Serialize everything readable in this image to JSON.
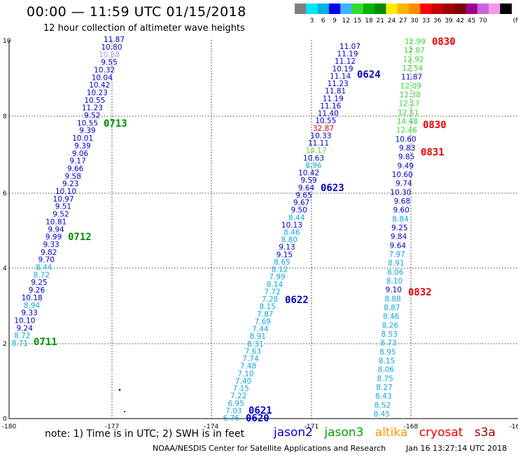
{
  "header": {
    "title": "00:00 — 11:59 UTC 01/15/2018",
    "subtitle": "12 hour collection of altimeter wave heights"
  },
  "colorbar": {
    "colors": [
      "#808080",
      "#00e5ff",
      "#00b4e0",
      "#0000e6",
      "#3cb4ff",
      "#32dc32",
      "#00b400",
      "#008c00",
      "#ffeb00",
      "#ffb400",
      "#ff8c00",
      "#ff0000",
      "#c80000",
      "#a00000",
      "#800000",
      "#a0008c",
      "#c864dc",
      "#ff96e6",
      "#000000"
    ],
    "labels": [
      "3",
      "6",
      "9",
      "12",
      "15",
      "18",
      "21",
      "24",
      "27",
      "30",
      "33",
      "36",
      "39",
      "42",
      "45",
      "70"
    ],
    "unit": "(ft)"
  },
  "map": {
    "x_ticks": [
      "-180",
      "-177",
      "-174",
      "-171",
      "-168",
      "-16"
    ],
    "y_ticks": [
      "0",
      "2",
      "4",
      "6",
      "8",
      "10"
    ],
    "grid_lines": true
  },
  "tracks": {
    "a": {
      "color": "#0000c8",
      "values": [
        "11.87",
        "10.80",
        "10.88",
        "9.55",
        "10.32",
        "10.04",
        "10.42",
        "10.23",
        "10.55",
        "11.23",
        "9.52",
        "10.55",
        "9.39",
        "10.01",
        "9.39",
        "9.06",
        "9.17",
        "9.66",
        "9.58",
        "9.23",
        "10.10",
        "10.97",
        "9.51",
        "9.52",
        "10.81",
        "9.94",
        "9.99",
        "9.33",
        "9.82",
        "9.70",
        "8.44",
        "8.72",
        "9.25",
        "9.26",
        "10.18",
        "8.94",
        "9.33",
        "10.10",
        "9.24",
        "8.72",
        "8.71"
      ],
      "light_indices": [
        2
      ],
      "cyan_indices": [
        30,
        31,
        35,
        39,
        40
      ]
    },
    "b": {
      "color": "#0000c8",
      "values": [
        "11.07",
        "11.19",
        "11.12",
        "10.19",
        "11.14",
        "11.23",
        "11.81",
        "11.19",
        "11.16",
        "11.40",
        "10.55",
        "32.87",
        "10.33",
        "11.11",
        "14.17",
        "10.63",
        "8.96",
        "10.42",
        "9.59",
        "9.64",
        "9.65",
        "9.67",
        "9.50",
        "8.44",
        "10.13",
        "8.46",
        "8.80",
        "9.13",
        "9.15",
        "8.65",
        "8.12",
        "7.99",
        "8.14",
        "7.72",
        "7.28",
        "8.15",
        "7.87",
        "7.69",
        "7.44",
        "8.91",
        "8.31",
        "7.63",
        "7.74",
        "7.48",
        "7.10",
        "7.40",
        "7.15",
        "7.22",
        "6.95",
        "7.03",
        "6.76"
      ],
      "red_indices": [
        11
      ],
      "green_indices": [
        14
      ],
      "cyan_indices": [
        16,
        23,
        25,
        26,
        29,
        30,
        31,
        32,
        33,
        34,
        35,
        36,
        37,
        38,
        39,
        40,
        41,
        42,
        43,
        44,
        45,
        46,
        47,
        48,
        49,
        50
      ]
    },
    "c": {
      "color": "#32dc32",
      "values": [
        "12.99",
        "12.87",
        "12.92",
        "12.54",
        "11.87",
        "12.09",
        "12.38",
        "12.17",
        "12.51",
        "14.48",
        "12.46",
        "10.60",
        "9.83",
        "9.85",
        "9.49",
        "10.60",
        "9.74",
        "10.30",
        "9.68",
        "9.60",
        "8.84",
        "9.25",
        "9.84",
        "9.64",
        "7.97",
        "8.91",
        "8.06",
        "8.10",
        "9.10",
        "8.88",
        "8.87",
        "8.46",
        "8.26",
        "8.53",
        "8.73",
        "8.95",
        "8.15",
        "8.06",
        "8.75",
        "8.27",
        "8.43",
        "8.52",
        "8.45"
      ],
      "blue_indices": [
        4,
        11,
        12,
        13,
        14,
        15,
        16,
        17,
        18,
        19,
        21,
        22,
        23,
        28
      ],
      "cyan_indices": [
        20,
        24,
        25,
        26,
        27,
        29,
        30,
        31,
        32,
        33,
        34,
        35,
        36,
        37,
        38,
        39,
        40,
        41,
        42
      ]
    }
  },
  "pass_labels": [
    {
      "text": "0713",
      "color": "#008c00"
    },
    {
      "text": "0712",
      "color": "#008c00"
    },
    {
      "text": "0711",
      "color": "#008c00"
    },
    {
      "text": "0624",
      "color": "#0000c8"
    },
    {
      "text": "0623",
      "color": "#0000c8"
    },
    {
      "text": "0622",
      "color": "#0000c8"
    },
    {
      "text": "0621",
      "color": "#0000c8"
    },
    {
      "text": "0620",
      "color": "#0000c8"
    },
    {
      "text": "0830",
      "color": "#e60000"
    },
    {
      "text": "0830",
      "color": "#e60000"
    },
    {
      "text": "0831",
      "color": "#e60000"
    },
    {
      "text": "0832",
      "color": "#e60000"
    }
  ],
  "footer": {
    "note": "note: 1) Time is in UTC; 2) SWH is in feet",
    "legend": [
      {
        "name": "jason2",
        "color": "#0000c8"
      },
      {
        "name": "jason3",
        "color": "#00a000"
      },
      {
        "name": "altika",
        "color": "#ff9600"
      },
      {
        "name": "cryosat",
        "color": "#e60000"
      },
      {
        "name": "s3a",
        "color": "#a00000"
      }
    ],
    "credit": "NOAA/NESDIS Center for Satellite Applications and Research",
    "timestamp": "Jan 16 13:27:14 UTC 2018"
  }
}
